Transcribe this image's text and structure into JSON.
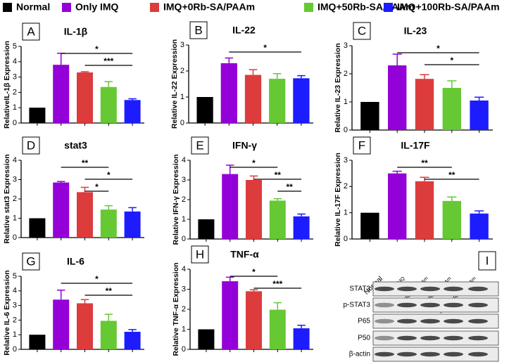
{
  "legend": [
    {
      "name": "Normal",
      "color": "#000000"
    },
    {
      "name": "Only IMQ",
      "color": "#9400d8"
    },
    {
      "name": "IMQ+0Rb-SA/PAAm",
      "color": "#dc3c3c"
    },
    {
      "name": "IMQ+50Rb-SA/PAAm",
      "color": "#66c833"
    },
    {
      "name": "IMQ+100Rb-SA/PAAm",
      "color": "#1c1cff"
    }
  ],
  "chart_data": [
    {
      "type": "bar",
      "letter": "A",
      "title": "IL-1β",
      "ylabel": "RelativeIL-1β Expression",
      "values": [
        1,
        3.8,
        3.3,
        2.35,
        1.5
      ],
      "errors": [
        0,
        0.75,
        0.05,
        0.35,
        0.08
      ],
      "ylim": [
        0,
        5
      ],
      "yticks": [
        0,
        1,
        2,
        3,
        4,
        5
      ],
      "significance": [
        {
          "from": 1,
          "to": 4,
          "label": "*"
        },
        {
          "from": 2,
          "to": 4,
          "label": "***"
        }
      ]
    },
    {
      "type": "bar",
      "letter": "B",
      "title": "IL-22",
      "ylabel": "Relative IL-22 Expression",
      "values": [
        1,
        2.3,
        1.85,
        1.7,
        1.72
      ],
      "errors": [
        0,
        0.2,
        0.2,
        0.2,
        0.1
      ],
      "ylim": [
        0,
        3
      ],
      "yticks": [
        0,
        1,
        2,
        3
      ],
      "significance": [
        {
          "from": 1,
          "to": 4,
          "label": "*"
        }
      ]
    },
    {
      "type": "bar",
      "letter": "C",
      "title": "IL-23",
      "ylabel": "Relative IL-23 Expression",
      "values": [
        1,
        2.3,
        1.82,
        1.5,
        1.05
      ],
      "errors": [
        0,
        0.4,
        0.15,
        0.25,
        0.12
      ],
      "ylim": [
        0,
        3
      ],
      "yticks": [
        0,
        1,
        2,
        3
      ],
      "significance": [
        {
          "from": 1,
          "to": 4,
          "label": "*"
        },
        {
          "from": 2,
          "to": 4,
          "label": "*"
        }
      ]
    },
    {
      "type": "bar",
      "letter": "D",
      "title": "stat3",
      "ylabel": "Relative stat3 Expression",
      "values": [
        1,
        2.85,
        2.35,
        1.45,
        1.35
      ],
      "errors": [
        0,
        0.05,
        0.25,
        0.2,
        0.2
      ],
      "ylim": [
        0,
        4
      ],
      "yticks": [
        0,
        1,
        2,
        3,
        4
      ],
      "significance": [
        {
          "from": 1,
          "to": 3,
          "label": "**"
        },
        {
          "from": 2,
          "to": 4,
          "label": "*"
        },
        {
          "from": 2,
          "to": 3,
          "label": "*"
        }
      ]
    },
    {
      "type": "bar",
      "letter": "E",
      "title": "IFN-γ",
      "ylabel": "Relative IFN-γ Expression",
      "values": [
        1,
        3.3,
        3.0,
        1.95,
        1.15
      ],
      "errors": [
        0,
        0.45,
        0.2,
        0.1,
        0.12
      ],
      "ylim": [
        0,
        4
      ],
      "yticks": [
        0,
        1,
        2,
        3,
        4
      ],
      "significance": [
        {
          "from": 1,
          "to": 3,
          "label": "*"
        },
        {
          "from": 2,
          "to": 4,
          "label": "**"
        },
        {
          "from": 3,
          "to": 4,
          "label": "**"
        }
      ]
    },
    {
      "type": "bar",
      "letter": "F",
      "title": "IL-17F",
      "ylabel": "Relative IL-17F Expression",
      "values": [
        1,
        2.5,
        2.2,
        1.45,
        0.97
      ],
      "errors": [
        0,
        0.08,
        0.15,
        0.15,
        0.1
      ],
      "ylim": [
        0,
        3
      ],
      "yticks": [
        0,
        1,
        2,
        3
      ],
      "significance": [
        {
          "from": 1,
          "to": 3,
          "label": "**"
        },
        {
          "from": 2,
          "to": 4,
          "label": "**"
        }
      ]
    },
    {
      "type": "bar",
      "letter": "G",
      "title": "IL-6",
      "ylabel": "Relative IL-6 Expression",
      "values": [
        1,
        3.4,
        3.15,
        1.95,
        1.2
      ],
      "errors": [
        0,
        0.65,
        0.25,
        0.45,
        0.15
      ],
      "ylim": [
        0,
        5
      ],
      "yticks": [
        0,
        1,
        2,
        3,
        4,
        5
      ],
      "significance": [
        {
          "from": 1,
          "to": 4,
          "label": "*"
        },
        {
          "from": 2,
          "to": 4,
          "label": "**"
        }
      ]
    },
    {
      "type": "bar",
      "letter": "H",
      "title": "TNF-α",
      "ylabel": "Relative TNF-α Expression",
      "values": [
        1,
        3.4,
        2.9,
        1.98,
        1.05
      ],
      "errors": [
        0,
        0.2,
        0.08,
        0.35,
        0.15
      ],
      "ylim": [
        0,
        4
      ],
      "yticks": [
        0,
        1,
        2,
        3,
        4
      ],
      "significance": [
        {
          "from": 1,
          "to": 3,
          "label": "*"
        },
        {
          "from": 2,
          "to": 4,
          "label": "***"
        }
      ]
    }
  ],
  "blot": {
    "letter": "I",
    "columns": [
      "Normal",
      "Only IMQ",
      "IMQ+0Rb-SA/PAAm",
      "IMQ+50Rb-SA/PAAm",
      "IMQ+100Rb-SA/PAAm"
    ],
    "rows": [
      "STAT3",
      "p-STAT3",
      "P65",
      "P50",
      "β-actin"
    ]
  }
}
